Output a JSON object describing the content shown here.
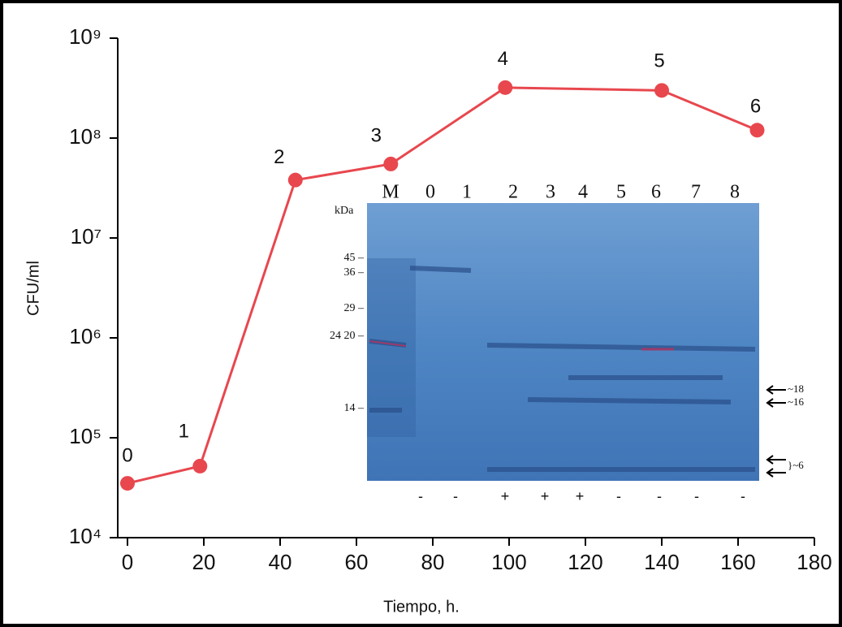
{
  "chart_data": {
    "type": "line",
    "x_label": "Tiempo, h.",
    "y_label": "CFU/ml",
    "x": [
      0,
      19,
      44,
      69,
      99,
      140,
      165
    ],
    "series": [
      {
        "color": "#e8474e",
        "values": [
          35000,
          52000,
          38000000,
          55000000,
          320000000,
          300000000,
          120000000
        ]
      }
    ],
    "point_labels": [
      "0",
      "1",
      "2",
      "3",
      "4",
      "5",
      "6"
    ],
    "xlim": [
      0,
      180
    ],
    "xticks": [
      0,
      20,
      40,
      60,
      80,
      100,
      120,
      140,
      160,
      180
    ],
    "ylim": [
      10000,
      1000000000
    ],
    "log_y": true,
    "yticks": [
      {
        "value": 10000,
        "label": "10⁴"
      },
      {
        "value": 100000,
        "label": "10⁵"
      },
      {
        "value": 1000000,
        "label": "10⁶"
      },
      {
        "value": 10000000,
        "label": "10⁷"
      },
      {
        "value": 100000000,
        "label": "10⁸"
      },
      {
        "value": 1000000000,
        "label": "10⁹"
      }
    ],
    "inset": {
      "lanes": [
        "M",
        "0",
        "1",
        "2",
        "3",
        "4",
        "5",
        "6",
        "7",
        "8"
      ],
      "unit": "kDa",
      "markers": [
        "45 –",
        "36 –",
        "29 –",
        "24 20 –",
        "14 –"
      ],
      "bands": [
        "~18",
        "~16",
        "}~6"
      ],
      "signs": [
        "-",
        "-",
        "+",
        "+",
        "+",
        "-",
        "-",
        "-",
        "-"
      ]
    }
  }
}
